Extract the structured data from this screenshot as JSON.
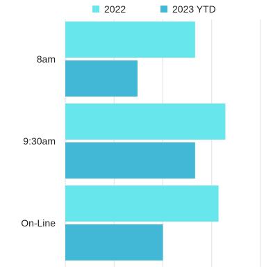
{
  "chart_data": {
    "type": "bar",
    "orientation": "horizontal",
    "categories": [
      "8am",
      "9:30am",
      "On-Line"
    ],
    "series": [
      {
        "name": "2022",
        "color": "#67e6ec",
        "values": [
          133,
          164,
          157
        ]
      },
      {
        "name": "2023 YTD",
        "color": "#42b8d6",
        "values": [
          74,
          133,
          100
        ]
      }
    ],
    "xlim": [
      0,
      200
    ],
    "xticks": [
      0,
      50,
      100,
      150,
      200
    ],
    "grid": true,
    "legend": "top-center"
  }
}
